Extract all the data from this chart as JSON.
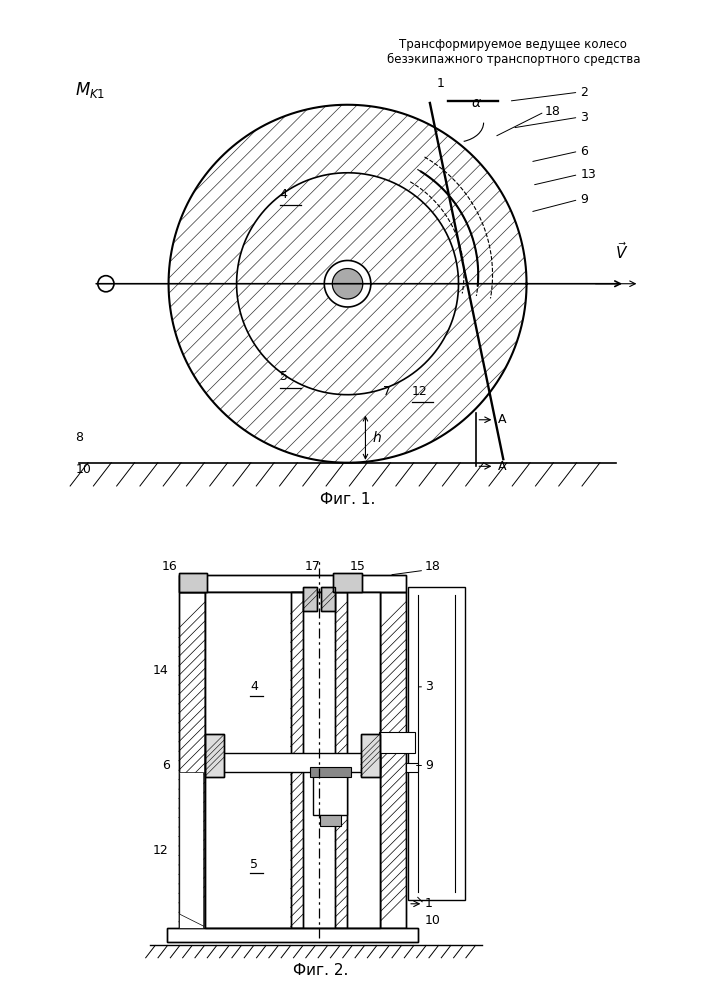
{
  "title": "Трансформируемое ведущее колесо\nбезэкипажного транспортного средства",
  "fig1_caption": "Фиг. 1.",
  "fig2_caption": "Фиг. 2.",
  "bg_color": "#ffffff",
  "line_color": "#000000"
}
